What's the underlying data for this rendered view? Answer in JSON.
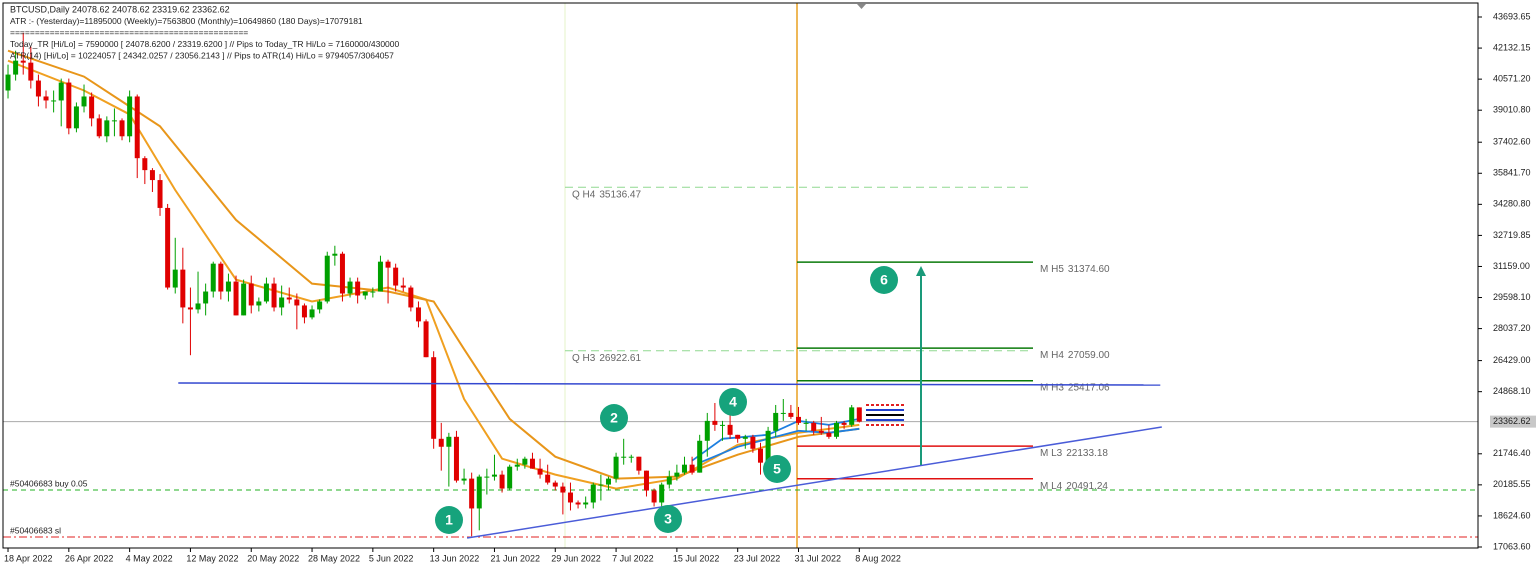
{
  "chart_data": {
    "type": "candlestick",
    "header": [
      "BTCUSD,Daily  24078.62 24078.62 23319.62 23362.62",
      "ATR :- (Yesterday)=11895000      (Weekly)=7563800      (Monthly)=10649860      (180 Days)=17079181",
      "================================================",
      "Today_TR [Hi/Lo] = 7590000 [ 24078.6200 / 23319.6200 ]   // Pips to Today_TR Hi/Lo    = 7160000/430000",
      "ATR(14)      [Hi/Lo] = 10224057 [ 24342.0257 / 23056.2143 ]  //  Pips to ATR(14) Hi/Lo      = 9794057/3064057"
    ],
    "xlim": [
      -0.66,
      193.4
    ],
    "ylim": [
      17013,
      44397
    ],
    "xticks": [
      {
        "value": 0,
        "label": "18 Apr 2022"
      },
      {
        "value": 8,
        "label": "26 Apr 2022"
      },
      {
        "value": 16,
        "label": "4 May 2022"
      },
      {
        "value": 24,
        "label": "12 May 2022"
      },
      {
        "value": 32,
        "label": "20 May 2022"
      },
      {
        "value": 40,
        "label": "28 May 2022"
      },
      {
        "value": 48,
        "label": "5 Jun 2022"
      },
      {
        "value": 56,
        "label": "13 Jun 2022"
      },
      {
        "value": 64,
        "label": "21 Jun 2022"
      },
      {
        "value": 72,
        "label": "29 Jun 2022"
      },
      {
        "value": 80,
        "label": "7 Jul 2022"
      },
      {
        "value": 88,
        "label": "15 Jul 2022"
      },
      {
        "value": 96,
        "label": "23 Jul 2022"
      },
      {
        "value": 104,
        "label": "31 Jul 2022"
      },
      {
        "value": 112,
        "label": "8 Aug 2022"
      }
    ],
    "yticks": [
      43693.65,
      42132.15,
      {
        "value": 40571.2,
        "label": "40571.20"
      },
      {
        "value": 39010.8,
        "label": "39010.80"
      },
      {
        "value": 37402.6,
        "label": "37402.60"
      },
      {
        "value": 35841.7,
        "label": "35841.70"
      },
      {
        "value": 34280.8,
        "label": "34280.80"
      },
      32719.85,
      {
        "value": 31159,
        "label": "31159.00"
      },
      {
        "value": 29598.1,
        "label": "29598.10"
      },
      {
        "value": 28037.2,
        "label": "28037.20"
      },
      {
        "value": 26429,
        "label": "26429.00"
      },
      {
        "value": 24868.1,
        "label": "24868.10"
      },
      {
        "value": 21746.4,
        "label": "21746.40"
      },
      20185.55,
      {
        "value": 18624.6,
        "label": "18624.60"
      },
      {
        "value": 17063.6,
        "label": "17063.60"
      }
    ],
    "up_color": "#00a000",
    "down_color": "#e00000",
    "open": [
      40000,
      40800,
      41500,
      41400,
      40500,
      39700,
      39500,
      39500,
      40400,
      38100,
      39200,
      39700,
      38600,
      37700,
      38500,
      38500,
      37700,
      39700,
      36600,
      36000,
      35500,
      34100,
      30100,
      31000,
      29100,
      29000,
      29300,
      29900,
      31300,
      29900,
      30400,
      28700,
      30300,
      29200,
      29400,
      30300,
      29100,
      29600,
      29500,
      29200,
      28600,
      29000,
      29400,
      31700,
      31800,
      29800,
      30400,
      29700,
      29900,
      29900,
      31400,
      31100,
      30200,
      30100,
      29100,
      28400,
      26600,
      22500,
      22100,
      22600,
      20400,
      20500,
      19000,
      20600,
      20600,
      20700,
      20000,
      21100,
      21200,
      21500,
      21000,
      20700,
      20300,
      20100,
      19800,
      19300,
      19200,
      19300,
      20200,
      20200,
      20500,
      21600,
      21600,
      21600,
      20900,
      19900,
      19300,
      20200,
      20600,
      20800,
      21200,
      20800,
      22400,
      23400,
      23200,
      23200,
      22700,
      22500,
      22600,
      22000,
      21300,
      22900,
      23800,
      23800,
      23600,
      23300,
      23300,
      22900,
      22800,
      22600,
      23300,
      23200,
      24078.62
    ],
    "high": [
      41300,
      42000,
      42900,
      42200,
      40800,
      40000,
      40000,
      40600,
      40600,
      39400,
      40300,
      39900,
      38800,
      38700,
      39100,
      38600,
      40000,
      39800,
      36700,
      36100,
      35800,
      34300,
      32600,
      32100,
      30100,
      30900,
      30300,
      31400,
      31400,
      30800,
      30700,
      30500,
      30700,
      29600,
      30600,
      30600,
      30200,
      30100,
      29800,
      29300,
      29200,
      29500,
      31900,
      32200,
      31900,
      30600,
      30600,
      29900,
      30100,
      31700,
      31500,
      31300,
      30600,
      30200,
      29400,
      28500,
      26900,
      23300,
      22800,
      22900,
      21000,
      20800,
      20700,
      21000,
      21700,
      20900,
      21200,
      21500,
      21600,
      21800,
      21500,
      21200,
      20400,
      20300,
      20300,
      19400,
      19600,
      20300,
      20700,
      20600,
      21800,
      22500,
      21700,
      21600,
      20900,
      20000,
      20300,
      20900,
      21200,
      21600,
      21600,
      22700,
      23800,
      24300,
      23400,
      23700,
      22700,
      22700,
      22700,
      22300,
      23100,
      24200,
      24500,
      24200,
      24100,
      23500,
      23400,
      23600,
      23200,
      23400,
      23400,
      24200,
      24078.62
    ],
    "low": [
      39600,
      40500,
      40800,
      40100,
      39200,
      39100,
      38900,
      38200,
      37800,
      37900,
      38900,
      38200,
      37600,
      37400,
      37700,
      37500,
      37400,
      35600,
      35300,
      34900,
      33700,
      30000,
      29800,
      28300,
      26700,
      28800,
      28700,
      29600,
      29500,
      29400,
      28700,
      28700,
      28800,
      28900,
      29300,
      28900,
      28700,
      29300,
      28000,
      28300,
      28500,
      28800,
      29300,
      31200,
      29400,
      29600,
      29300,
      29500,
      29600,
      29900,
      29300,
      29900,
      29900,
      28900,
      28100,
      26600,
      22000,
      20900,
      20100,
      20300,
      20200,
      17600,
      17900,
      19700,
      20400,
      19800,
      19900,
      20900,
      21000,
      21000,
      20500,
      20200,
      19900,
      18700,
      18900,
      19000,
      19000,
      19000,
      19400,
      19900,
      20300,
      21200,
      21300,
      20700,
      19600,
      19100,
      18900,
      20000,
      20400,
      20700,
      20700,
      20800,
      21600,
      22900,
      22400,
      22500,
      22300,
      22000,
      21800,
      20700,
      21100,
      22600,
      23400,
      23500,
      23200,
      22900,
      22700,
      22700,
      22500,
      22500,
      23000,
      23100,
      23319.62
    ],
    "close": [
      40800,
      41500,
      41400,
      40500,
      39700,
      39500,
      39500,
      40400,
      38100,
      39200,
      39700,
      38600,
      37700,
      38500,
      38500,
      37700,
      39700,
      36600,
      36000,
      35500,
      34100,
      30100,
      31000,
      29100,
      29000,
      29300,
      29900,
      31300,
      29900,
      30400,
      28700,
      30300,
      29200,
      29400,
      30300,
      29100,
      29600,
      29500,
      29200,
      28600,
      29000,
      29400,
      31700,
      31800,
      29800,
      30400,
      29700,
      29900,
      29900,
      31400,
      31100,
      30200,
      30100,
      29100,
      28400,
      26600,
      22500,
      22100,
      22600,
      20400,
      20500,
      19000,
      20600,
      20600,
      20700,
      20000,
      21100,
      21200,
      21500,
      21000,
      20700,
      20300,
      20100,
      19800,
      19300,
      19200,
      19300,
      20200,
      20200,
      20500,
      21600,
      21600,
      21600,
      20900,
      19900,
      19300,
      20200,
      20600,
      20800,
      21200,
      20800,
      22400,
      23400,
      23200,
      23200,
      22700,
      22500,
      22600,
      22000,
      21300,
      22900,
      23800,
      23800,
      23600,
      23300,
      23300,
      22900,
      22800,
      22600,
      23300,
      23200,
      24078.62,
      23362.62
    ],
    "current_price": {
      "value": 23362.62,
      "label": "23362.62"
    },
    "series": [
      {
        "color": "#f0a020",
        "x": [
          0,
          10,
          16,
          22,
          30,
          40,
          50,
          55,
          60,
          65,
          72,
          80,
          88,
          96,
          104,
          112
        ],
        "values": [
          41500,
          40000,
          38800,
          35000,
          30500,
          29400,
          30100,
          29500,
          24500,
          21500,
          20700,
          20000,
          20500,
          22200,
          22800,
          23200
        ]
      },
      {
        "color": "#e8961a",
        "x": [
          0,
          10,
          20,
          30,
          40,
          50,
          56,
          60,
          66,
          72,
          80,
          88,
          96,
          104,
          112
        ],
        "values": [
          42000,
          40700,
          38200,
          33500,
          30300,
          29900,
          29400,
          27000,
          23500,
          21600,
          20500,
          20600,
          21700,
          22600,
          23000
        ]
      },
      {
        "color": "#1e7fe0",
        "x": [
          90,
          94,
          100,
          104,
          108,
          112
        ],
        "values": [
          21400,
          22500,
          22700,
          23400,
          23200,
          23500
        ]
      },
      {
        "color": "#1e7fe0",
        "x": [
          91,
          96,
          100,
          104,
          108,
          112
        ],
        "values": [
          21300,
          22100,
          22500,
          22900,
          22800,
          23000
        ]
      }
    ],
    "levels": [
      {
        "name": "Q  H4",
        "value": 35136.47,
        "color": "#90d890",
        "style": "dashed"
      },
      {
        "name": "Q  H3",
        "value": 26922.61,
        "color": "#90d890",
        "style": "dashed"
      },
      {
        "name": "M  H5",
        "value": 31374.6,
        "value_label": "31374.60",
        "color": "#0a7a0a",
        "style": "solid"
      },
      {
        "name": "M  H4",
        "value": 27059,
        "value_label": "27059.00",
        "color": "#0a7a0a",
        "style": "solid"
      },
      {
        "name": "M  H3",
        "value": 25417.06,
        "color": "#0a7a0a",
        "style": "solid"
      },
      {
        "name": "M  L3",
        "value": 22133.18,
        "color": "#e01010",
        "style": "solid"
      },
      {
        "name": "M  L4",
        "value": 20491.24,
        "color": "#e01010",
        "style": "solid"
      }
    ],
    "orders": [
      {
        "label": "#50406683 buy 0.05",
        "value": 19925,
        "color": "#20b020"
      },
      {
        "label": "#50406683 sl",
        "value": 17563,
        "color": "#e02020"
      }
    ],
    "trendlines": [
      {
        "x": [
          22.4,
          151.6
        ],
        "values": [
          25302,
          25202
        ],
        "color": "#3448d0"
      },
      {
        "x": [
          60.4,
          151.8
        ],
        "values": [
          17514,
          23092
        ],
        "color": "#4a5cd8"
      }
    ],
    "markers": [
      "1",
      "2",
      "3",
      "4",
      "5",
      "6"
    ]
  }
}
